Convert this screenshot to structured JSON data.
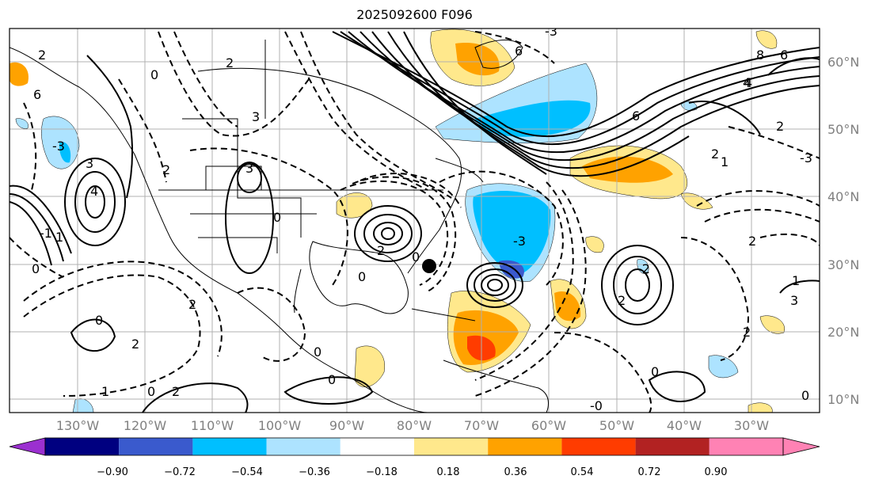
{
  "title": "2025092600 F096",
  "map": {
    "lat_labels": [
      "60°N",
      "50°N",
      "40°N",
      "30°N",
      "20°N",
      "10°N"
    ],
    "lon_labels": [
      "130°W",
      "120°W",
      "110°W",
      "100°W",
      "90°W",
      "80°W",
      "70°W",
      "60°W",
      "50°W",
      "40°W",
      "30°W"
    ],
    "contour_labels": [
      "2",
      "0",
      "6",
      "2",
      "3",
      "2",
      "0",
      "-3",
      "3",
      "4",
      "6",
      "3",
      "4",
      "2",
      "-3",
      "0",
      "-3",
      "2",
      "0",
      "-1",
      "1",
      "2",
      "0",
      "0",
      "2",
      "1",
      "0",
      "0",
      "2",
      "6",
      "8",
      "6",
      "4",
      "2",
      "1",
      "3",
      "2",
      "-2",
      "2",
      "0",
      "0",
      "1",
      "2",
      "0",
      "-0",
      "-3"
    ],
    "storm_marker": "black-dot"
  },
  "colorbar": {
    "ticks": [
      "−0.90",
      "−0.72",
      "−0.54",
      "−0.36",
      "−0.18",
      "0.18",
      "0.36",
      "0.54",
      "0.72",
      "0.90"
    ],
    "colors": [
      "#9b30d0",
      "#000080",
      "#3a5acd",
      "#00bfff",
      "#ade3ff",
      "#ffffff",
      "#ffe88c",
      "#ffa200",
      "#ff3c00",
      "#b22222",
      "#ff82b4",
      "#ff82b4"
    ]
  }
}
